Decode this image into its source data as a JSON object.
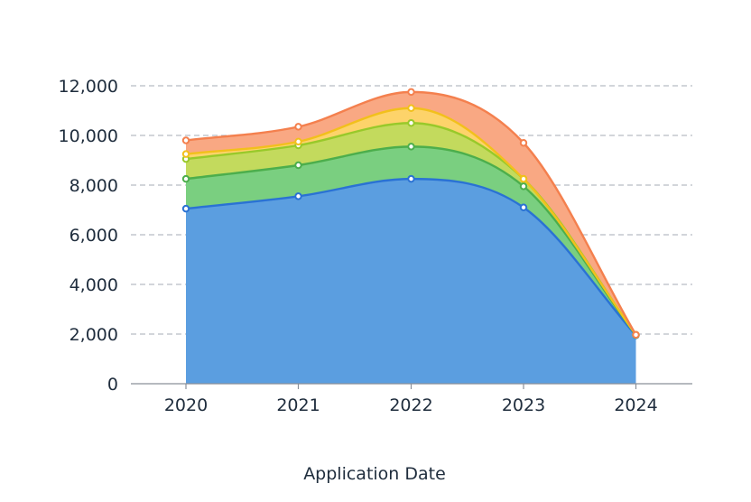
{
  "chart_data": {
    "type": "area",
    "stacked": true,
    "smooth": true,
    "categories": [
      "2020",
      "2021",
      "2022",
      "2023",
      "2024"
    ],
    "series": [
      {
        "values": [
          7050,
          7550,
          8250,
          7100,
          1950
        ],
        "color": "#5b9ee0",
        "line": "#2a72d4"
      },
      {
        "values": [
          1200,
          1250,
          1300,
          850,
          10
        ],
        "color": "#7acf80",
        "line": "#4cae4c"
      },
      {
        "values": [
          800,
          800,
          950,
          300,
          10
        ],
        "color": "#c3da5d",
        "line": "#98c92a"
      },
      {
        "values": [
          200,
          150,
          600,
          0,
          0
        ],
        "color": "#fdd36a",
        "line": "#f2c01c"
      },
      {
        "values": [
          550,
          600,
          650,
          1450,
          0
        ],
        "color": "#f9a883",
        "line": "#f4804e"
      }
    ],
    "y_ticks": [
      "0",
      "2,000",
      "4,000",
      "6,000",
      "8,000",
      "10,000",
      "12,000"
    ],
    "ylim": [
      0,
      12000
    ],
    "xlabel": "Application Date",
    "grid": true
  }
}
